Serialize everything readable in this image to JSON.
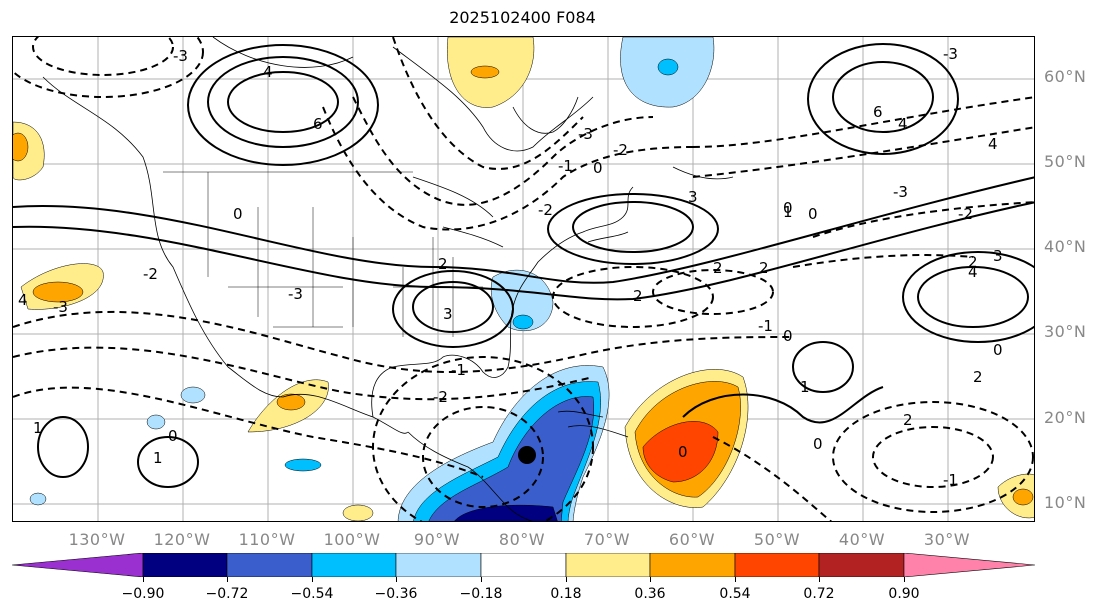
{
  "title": "2025102400 F084",
  "lat_labels": [
    "60°N",
    "50°N",
    "40°N",
    "30°N",
    "20°N",
    "10°N"
  ],
  "lon_labels": [
    "130°W",
    "120°W",
    "110°W",
    "100°W",
    "90°W",
    "80°W",
    "70°W",
    "60°W",
    "50°W",
    "40°W",
    "30°W"
  ],
  "colorbar": {
    "ticks": [
      "−0.90",
      "−0.72",
      "−0.54",
      "−0.36",
      "−0.18",
      "0.18",
      "0.36",
      "0.54",
      "0.72",
      "0.90"
    ],
    "colors": {
      "under": "#9b30d0",
      "c1": "#000080",
      "c2": "#3a5fcd",
      "c3": "#00bfff",
      "c4": "#b0e2ff",
      "c5": "#ffffff",
      "c6": "#ffec8b",
      "c7": "#ffa500",
      "c8": "#ff4500",
      "c9": "#b22222",
      "over": "#ff82ab"
    }
  },
  "contour_labels": [
    "-3",
    "-2",
    "-1",
    "0",
    "1",
    "2",
    "3",
    "4",
    "6"
  ],
  "marker": "storm-center-dot"
}
